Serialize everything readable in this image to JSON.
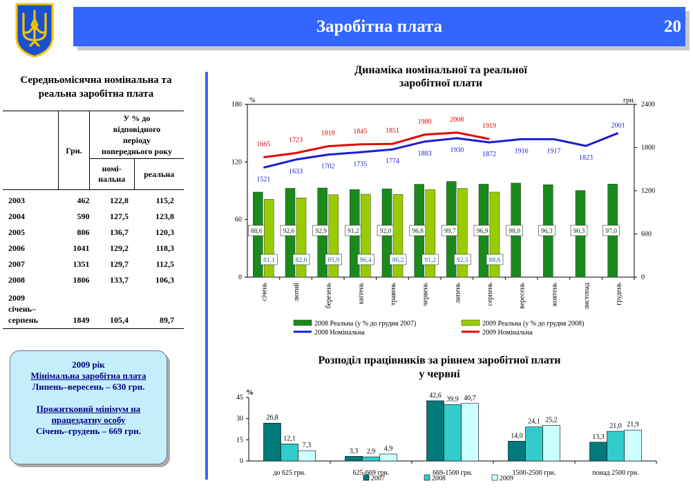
{
  "header": {
    "title": "Заробітна плата",
    "page_number": "20"
  },
  "emblem": {
    "icon": "trident-emblem-icon",
    "colors": {
      "shield": "#1a4fcf",
      "trident": "#f4c400"
    }
  },
  "colors": {
    "accent": "#3366ff",
    "info_bg": "#c5eefc"
  },
  "table": {
    "title_line1": "Середньомісячна номінальна та",
    "title_line2": "реальна  заробітна плата",
    "headers": {
      "grn": "Грн.",
      "pct_line1": "У % до",
      "pct_line2": "відповідного",
      "pct_line3": "періоду",
      "pct_line4": "попереднього року",
      "nominal_line1": "номі-",
      "nominal_line2": "нальна",
      "real": "реальна"
    },
    "rows": [
      {
        "year": "2003",
        "grn": "462",
        "nominal": "122,8",
        "real": "115,2"
      },
      {
        "year": "2004",
        "grn": "590",
        "nominal": "127,5",
        "real": "123,8"
      },
      {
        "year": "2005",
        "grn": "806",
        "nominal": "136,7",
        "real": "120,3"
      },
      {
        "year": "2006",
        "grn": "1041",
        "nominal": "129,2",
        "real": "118,3"
      },
      {
        "year": "2007",
        "grn": "1351",
        "nominal": "129,7",
        "real": "112,5"
      },
      {
        "year": "2008",
        "grn": "1806",
        "nominal": "133,7",
        "real": "106,3"
      }
    ],
    "last_row": {
      "year_line1": "2009",
      "year_line2": "січень–",
      "year_line3": "серпень",
      "grn": "1849",
      "nominal": "105,4",
      "real": "89,7"
    }
  },
  "info_box": {
    "line1": "2009 рік",
    "line2": "Мінімальна заробітна плата",
    "line3": "Липень–вересень – 630 грн.",
    "line4": "Прожитковий мінімум на",
    "line5": "працездатну особу",
    "line6": "Січень–грудень – 669 грн."
  },
  "chart_data": [
    {
      "type": "bar",
      "title": "Динаміка номінальної та реальної заробітної плати",
      "title_line1": "Динаміка номінальної та реальної",
      "title_line2": "заробітної плати",
      "left_axis_label": "%",
      "right_axis_label": "грн.",
      "left_ylim": [
        0,
        180
      ],
      "left_ticks": [
        "0",
        "60",
        "120",
        "180"
      ],
      "right_ylim": [
        0,
        2400
      ],
      "right_ticks": [
        "0",
        "600",
        "1200",
        "1800",
        "2400"
      ],
      "categories": [
        "січень",
        "лютий",
        "березень",
        "квітень",
        "травень",
        "червень",
        "липень",
        "серпень",
        "вересень",
        "жовтень",
        "листопад",
        "грудень"
      ],
      "bar_series": [
        {
          "name": "2008 Реальна (у % до грудня 2007)",
          "color": "#1a8a1a",
          "values": [
            88.6,
            92.6,
            92.9,
            91.2,
            92.0,
            96.8,
            99.7,
            96.9,
            98.0,
            96.3,
            90.3,
            97.0
          ],
          "labels": [
            "88,6",
            "92,6",
            "92,9",
            "91,2",
            "92,0",
            "96,8",
            "99,7",
            "96,9",
            "98,0",
            "96,3",
            "90,3",
            "97,0"
          ]
        },
        {
          "name": "2009 Реальна (у % до грудня 2008)",
          "color": "#99cc00",
          "values": [
            81.1,
            82.6,
            85.9,
            86.4,
            86.2,
            91.2,
            92.5,
            88.6
          ],
          "labels": [
            "81,1",
            "82,6",
            "85,9",
            "86,4",
            "86,2",
            "91,2",
            "92,5",
            "88,6"
          ]
        }
      ],
      "line_series": [
        {
          "name": "2008 Номінальна",
          "color": "#1a1ad6",
          "values": [
            1521,
            1633,
            1702,
            1735,
            1774,
            1883,
            1930,
            1872,
            1916,
            1917,
            1823,
            2001
          ],
          "labels": [
            "1521",
            "1633",
            "1702",
            "1735",
            "1774",
            "1883",
            "1930",
            "1872",
            "1916",
            "1917",
            "1823",
            "2001"
          ]
        },
        {
          "name": "2009 Номінальна",
          "color": "#e60000",
          "values": [
            1665,
            1723,
            1818,
            1845,
            1851,
            1980,
            2008,
            1919
          ],
          "labels": [
            "1665",
            "1723",
            "1818",
            "1845",
            "1851",
            "1980",
            "2008",
            "1919"
          ]
        }
      ],
      "legend": "bottom"
    },
    {
      "type": "bar",
      "title": "Розподіл працівників за рівнем заробітної плати у червні",
      "title_line1": "Розподіл працівників за рівнем заробітної плати",
      "title_line2": "у червні",
      "ylabel": "%",
      "ylim": [
        0,
        45
      ],
      "yticks": [
        "0",
        "15",
        "30",
        "45"
      ],
      "categories": [
        "до 625 грн.",
        "625-669 грн.",
        "669-1500 грн.",
        "1500-2500 грн.",
        "понад 2500 грн."
      ],
      "series": [
        {
          "name": "2007",
          "color": "#007a7a",
          "values": [
            26.8,
            3.3,
            42.6,
            14.0,
            13.3
          ],
          "labels": [
            "26,8",
            "3,3",
            "42,6",
            "14,0",
            "13,3"
          ]
        },
        {
          "name": "2008",
          "color": "#33cccc",
          "values": [
            12.1,
            2.9,
            39.9,
            24.1,
            21.0
          ],
          "labels": [
            "12,1",
            "2,9",
            "39,9",
            "24,1",
            "21,0"
          ]
        },
        {
          "name": "2009",
          "color": "#ccffff",
          "values": [
            7.3,
            4.9,
            40.7,
            25.2,
            21.9
          ],
          "labels": [
            "7,3",
            "4,9",
            "40,7",
            "25,2",
            "21,9"
          ]
        }
      ],
      "legend": "bottom"
    }
  ]
}
